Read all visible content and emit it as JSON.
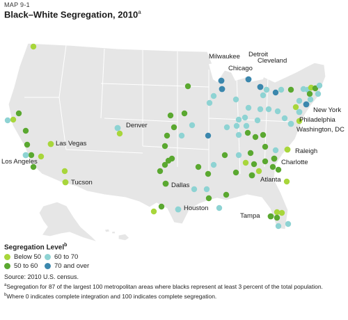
{
  "header": {
    "label": "MAP 9-1",
    "title": "Black–White Segregation, 2010",
    "title_sup": "a"
  },
  "legend": {
    "title": "Segregation Level",
    "title_sup": "b",
    "items": [
      {
        "label": "Below 50",
        "color": "#a8d63b"
      },
      {
        "label": "60 to 70",
        "color": "#8ed3d3"
      },
      {
        "label": "50 to 60",
        "color": "#5aa830"
      },
      {
        "label": "70 and over",
        "color": "#3b87ad"
      }
    ]
  },
  "source": "Source: 2010 U.S. census.",
  "notes": [
    {
      "mark": "a",
      "text": "Segregation for 87 of the largest 100 metropolitan areas where blacks represent at least 3 percent of the total population."
    },
    {
      "mark": "b",
      "text": "Where 0 indicates complete integration and 100 indicates complete segregation."
    }
  ],
  "cities": [
    {
      "name": "Milwaukee",
      "level": "70 and over"
    },
    {
      "name": "Chicago",
      "level": "70 and over"
    },
    {
      "name": "Detroit",
      "level": "70 and over"
    },
    {
      "name": "Cleveland",
      "level": "70 and over"
    },
    {
      "name": "New York",
      "level": "70 and over"
    },
    {
      "name": "Philadelphia",
      "level": "60 to 70"
    },
    {
      "name": "Washington, DC",
      "level": "60 to 70"
    },
    {
      "name": "Denver",
      "level": "60 to 70"
    },
    {
      "name": "Las Vegas",
      "level": "Below 50"
    },
    {
      "name": "Los Angeles",
      "level": "60 to 70"
    },
    {
      "name": "Tucson",
      "level": "Below 50"
    },
    {
      "name": "Dallas",
      "level": "50 to 60"
    },
    {
      "name": "Houston",
      "level": "60 to 70"
    },
    {
      "name": "Atlanta",
      "level": "50 to 60"
    },
    {
      "name": "Raleigh",
      "level": "Below 50"
    },
    {
      "name": "Charlotte",
      "level": "50 to 60"
    },
    {
      "name": "Tampa",
      "level": "50 to 60"
    }
  ]
}
